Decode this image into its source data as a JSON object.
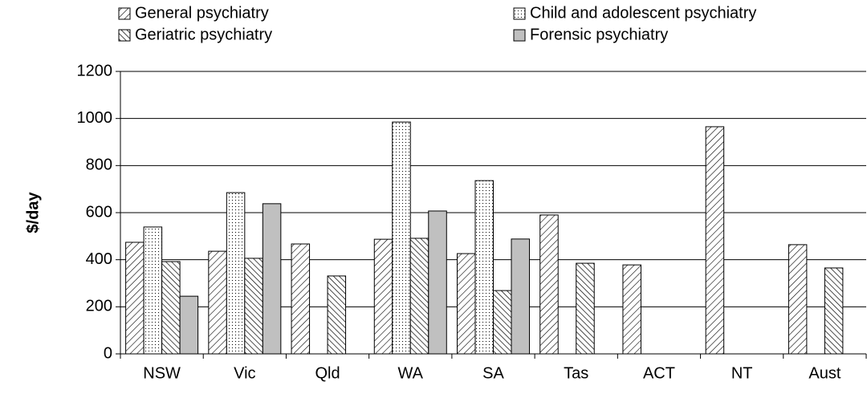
{
  "chart_data": {
    "type": "bar",
    "y_label": "$/day",
    "categories": [
      "NSW",
      "Vic",
      "Qld",
      "WA",
      "SA",
      "Tas",
      "ACT",
      "NT",
      "Aust"
    ],
    "series": [
      {
        "name": "General psychiatry",
        "color": "#000000",
        "pattern": "diagonal",
        "values": [
          474,
          436,
          467,
          487,
          426,
          590,
          378,
          965,
          464
        ]
      },
      {
        "name": "Child and adolescent psychiatry",
        "color": "#000000",
        "pattern": "dots",
        "values": [
          539,
          685,
          null,
          985,
          736,
          null,
          null,
          null,
          null
        ]
      },
      {
        "name": "Geriatric psychiatry",
        "color": "#000000",
        "pattern": "back-diagonal",
        "values": [
          392,
          406,
          331,
          491,
          269,
          385,
          null,
          null,
          365
        ]
      },
      {
        "name": "Forensic psychiatry",
        "color": "#c0c0c0",
        "pattern": "solid",
        "values": [
          245,
          638,
          null,
          607,
          488,
          null,
          null,
          null,
          null
        ]
      }
    ],
    "ylim": [
      0,
      1200
    ],
    "yticks": [
      0,
      200,
      400,
      600,
      800,
      1000,
      1200
    ],
    "grid": true
  }
}
